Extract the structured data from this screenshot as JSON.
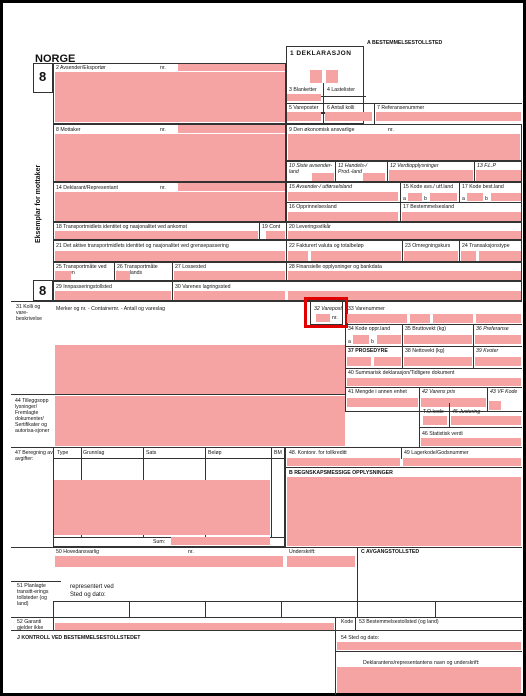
{
  "header": {
    "country": "NORGE",
    "field_a": "A BESTEMMELSESTOLLSTED",
    "decl_title": "1 DEKLARASJON",
    "copy_number": "8",
    "copy_number_2": "8",
    "side_label": "Eksemplar for mottaker"
  },
  "fields": {
    "f2": "2 Avsender/Eksportør",
    "f2_nr": "nr.",
    "f3": "3 Blanketter",
    "f4": "4 Lastelister",
    "f5": "5 Vareposter",
    "f6": "6 Antall kolli",
    "f7": "7 Referansenummer",
    "f8": "8 Mottaker",
    "f8_nr": "nr.",
    "f9": "9 Den økonomisk ansvarlige",
    "f9_nr": "nr.",
    "f10": "10 Siste avsender-land",
    "f11": "11 Handels-/ Prod.-land",
    "f12": "12 Verdiopplysninger",
    "f13": "13 F.L.P",
    "f14": "14 Deklarant/Representant",
    "f14_nr": "nr.",
    "f15": "15 Avsender-/ utførselsland",
    "f15_code": "15 Kode avs./ utf.land",
    "f17_code": "17 Kode best.land",
    "f15_a": "a",
    "f15_b": "b",
    "f17_a": "a",
    "f17_b": "b",
    "f16": "16 Opprinnelsesland",
    "f17": "17 Bestemmelsesland",
    "f18": "18 Transportmidlets identitet og nasjonalitet ved ankomst",
    "f19": "19 Cont",
    "f20": "20 Leveringsvilkår",
    "f21": "21 Det aktive transportmidlets identitet og nasjonalitet ved grensepassering",
    "f22": "22 Fakturert valuta og totalbeløp",
    "f23": "23 Omregningskurs",
    "f24": "24 Transaksjonstype",
    "f25": "25 Transportmåte ved grensen",
    "f26": "26 Transportmåte innenlands",
    "f27": "27 Lossested",
    "f28": "28 Finansielle opplysninger og bankdata",
    "f29": "29 Innpasseringstollsted",
    "f30": "30 Varenes lagringssted",
    "f31_label": "31 Kolli og vare-beskrivelse",
    "f31_text": "Merker og nr. - Containernr. - Antall og vareslag",
    "f32": "32 Varepost",
    "f32_nr": "nr.",
    "f33": "33 Varenummer",
    "f34": "34 Kode oppr.land",
    "f34_a": "a",
    "f34_b": "b",
    "f35": "35 Bruttovekt (kg)",
    "f36": "36 Preferanse",
    "f37": "37 PROSEDYRE",
    "f38": "38 Nettovekt (kg)",
    "f39": "39 Kvoter",
    "f40": "40 Summarisk deklarasjon/Tidligere dokument",
    "f41": "41 Mengde i annen enhet",
    "f42": "42 Varens pris",
    "f43": "43 VF Kode",
    "f44_label": "44 Tilleggsopp lysninger/ Fremlagte dokumenter/ Sertifikater og autorisa-sjoner",
    "to_kode": "T.O.kode",
    "f45": "45 Justering",
    "f46": "46 Statistisk verdi",
    "f47_label": "47 Beregning av avgifter:",
    "f47_type": "Type",
    "f47_grunnlag": "Grunnlag",
    "f47_sats": "Sats",
    "f47_belop": "Beløp",
    "f47_bm": "BM",
    "f47_sum": "Sum:",
    "f48": "48. Kontonr. for tollkreditt",
    "f49": "49 Lagerkode/Godsnummer",
    "fb": "B REGNSKAPSMESSIGE OPPLYSNINGER",
    "f50": "50 Hovedansvarlig",
    "f50_nr": "nr.",
    "f50_sign": "Underskrift:",
    "fc": "C AVGANGSTOLLSTED",
    "f50_rep": "representert ved",
    "f50_sted": "Sted og dato:",
    "f51": "51 Planlagte transitt-erings tollsteder (og land)",
    "f52": "52 Garanti gjelder ikke",
    "f52_kode": "Kode",
    "f53": "53 Bestemmelsestollsted (og land)",
    "fj": "J KONTROLL VED BESTEMMELSESTOLLSTEDET",
    "f54": "54 Sted og dato:",
    "f54_sign": "Deklarantens/representantens navn og underskrift:"
  }
}
